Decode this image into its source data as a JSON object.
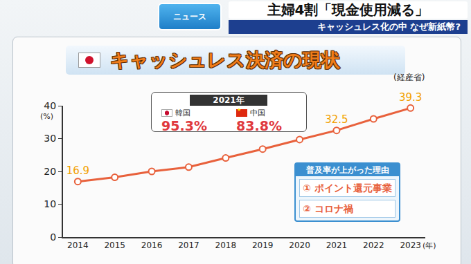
{
  "header": {
    "logo": "ニュース",
    "headline": "主婦4割「現金使用減る」",
    "subheadline": "キャッシュレス化の中 なぜ新紙幣?"
  },
  "chart_data": {
    "type": "line",
    "title": "キャッシュレス決済の現状",
    "source": "(経産省)",
    "y_unit": "(%)",
    "x_unit": "(年)",
    "categories": [
      "2014",
      "2015",
      "2016",
      "2017",
      "2018",
      "2019",
      "2020",
      "2021",
      "2022",
      "2023"
    ],
    "values": [
      16.9,
      18.2,
      20.0,
      21.3,
      24.1,
      26.8,
      29.7,
      32.5,
      36.0,
      39.3
    ],
    "value_labels": [
      "16.9",
      null,
      null,
      null,
      null,
      null,
      null,
      "32.5",
      null,
      "39.3"
    ],
    "color": "#e8613c",
    "marker": "circle",
    "line_style": "solid",
    "ylim": [
      0,
      40
    ],
    "yticks": [
      0,
      10,
      20,
      30,
      40
    ],
    "grid": false,
    "callout": {
      "title": "2021年",
      "items": [
        {
          "name": "韓国",
          "value": 95.3,
          "label": "95.3%"
        },
        {
          "name": "中国",
          "value": 83.8,
          "label": "83.8%"
        }
      ]
    },
    "reasons": {
      "title": "普及率が上がった理由",
      "items": [
        "① ポイント還元事業",
        "② コロナ禍"
      ]
    }
  }
}
